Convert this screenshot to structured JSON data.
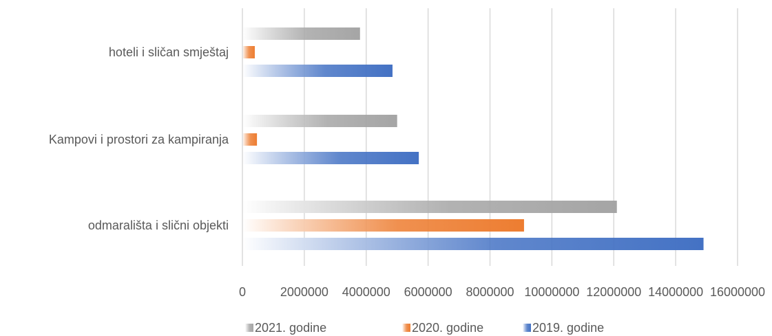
{
  "chart_data": {
    "type": "bar",
    "orientation": "horizontal",
    "categories": [
      "hoteli i sličan smještaj",
      "Kampovi i prostori za kampiranja",
      "odmarališta i slični objekti"
    ],
    "series": [
      {
        "name": "2021. godine",
        "color": "#a5a5a5",
        "values": [
          3800000,
          5000000,
          12100000
        ]
      },
      {
        "name": "2020. godine",
        "color": "#ed7d31",
        "values": [
          400000,
          470000,
          9100000
        ]
      },
      {
        "name": "2019. godine",
        "color": "#4472c4",
        "values": [
          4850000,
          5700000,
          14900000
        ]
      }
    ],
    "xlim": [
      0,
      16000000
    ],
    "xticks": [
      0,
      2000000,
      4000000,
      6000000,
      8000000,
      10000000,
      12000000,
      14000000,
      16000000
    ],
    "xtick_labels": [
      "0",
      "2000000",
      "4000000",
      "6000000",
      "8000000",
      "10000000",
      "12000000",
      "14000000",
      "16000000"
    ],
    "grid": true,
    "legend_position": "bottom",
    "bar_fill": "gradient"
  }
}
